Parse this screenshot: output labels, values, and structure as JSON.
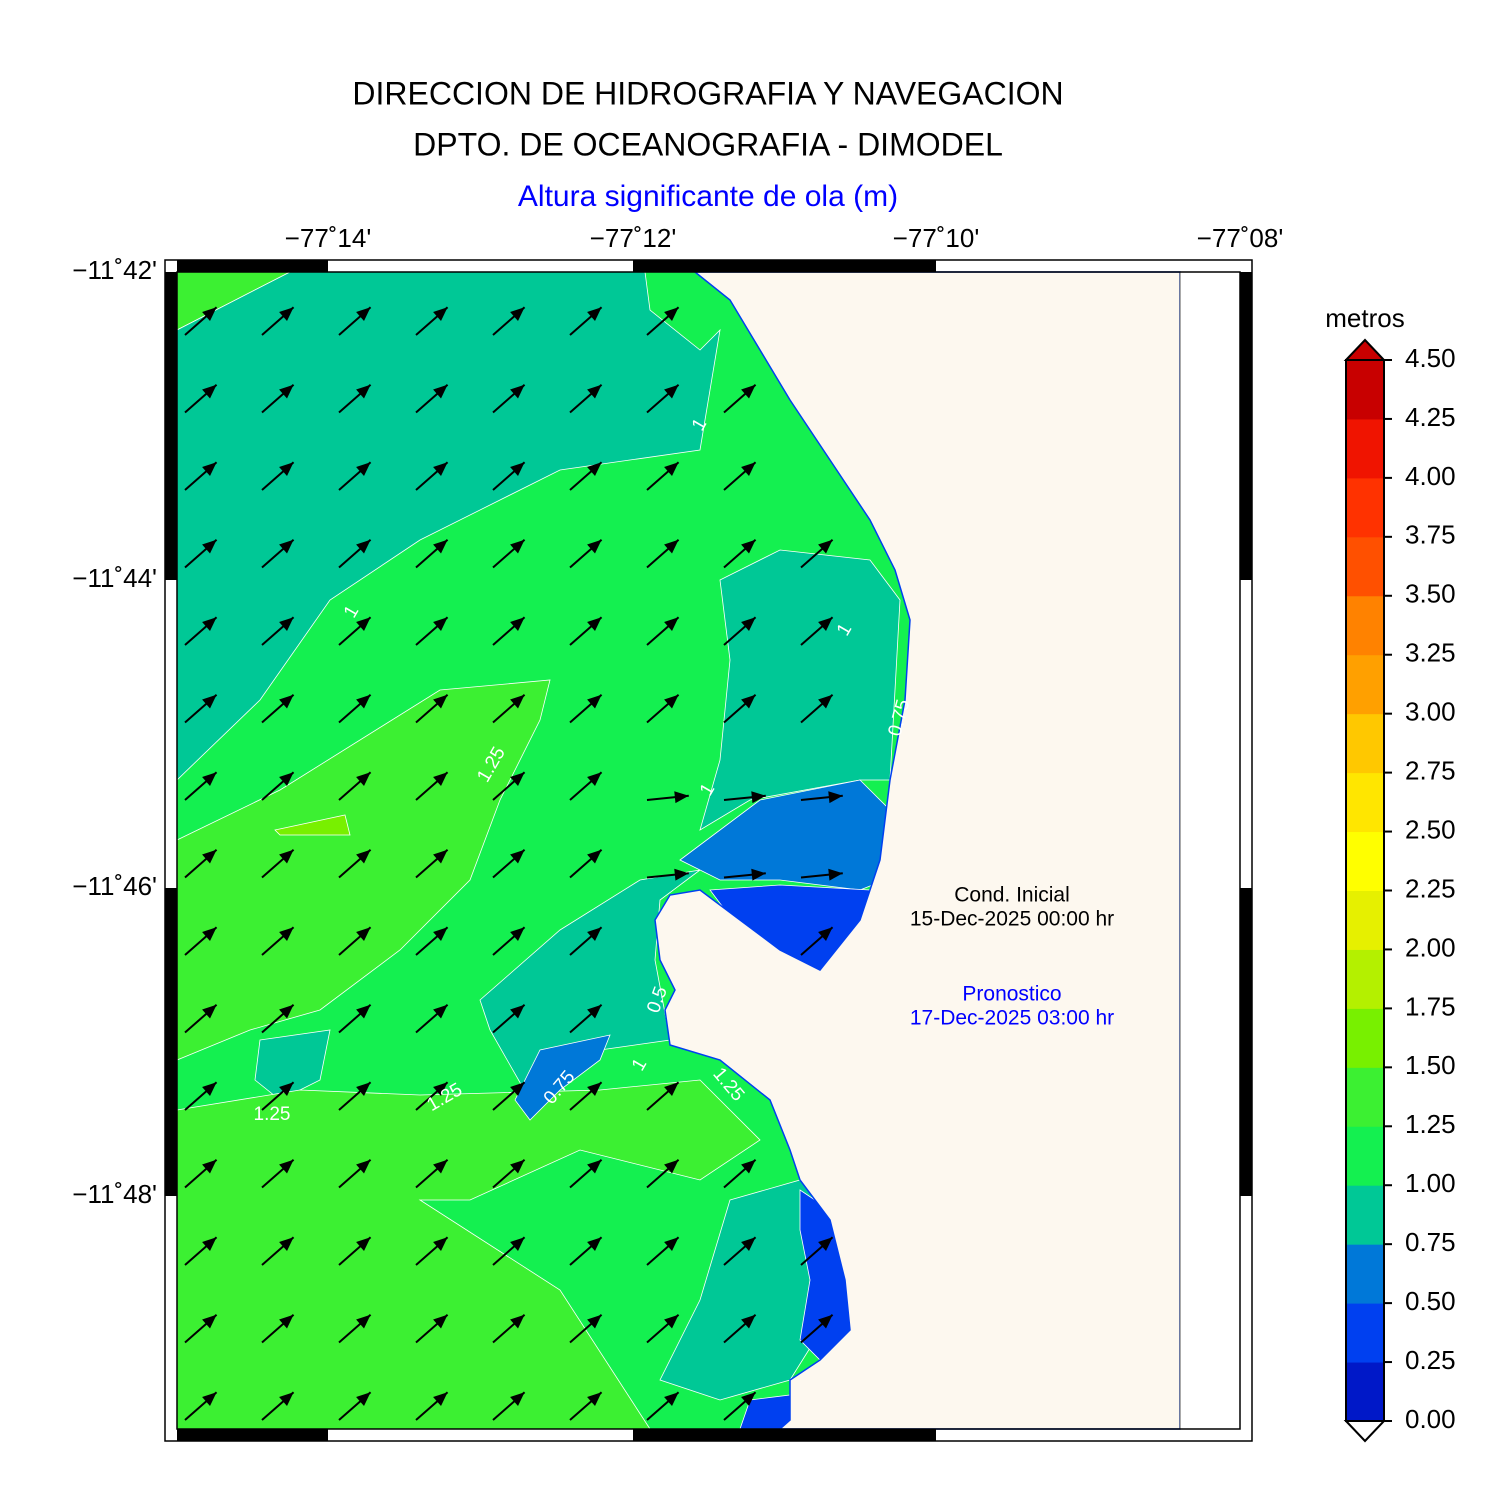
{
  "header": {
    "title": [
      "DIRECCION DE HIDROGRAFIA Y NAVEGACION",
      "DPTO. DE OCEANOGRAFIA - DIMODEL"
    ],
    "subtitle": "Altura significante de ola (m)"
  },
  "map": {
    "lon_labels": [
      "−77˚14'",
      "−77˚12'",
      "−77˚10'",
      "−77˚08'"
    ],
    "lat_labels": [
      "−11˚42'",
      "−11˚44'",
      "−11˚46'",
      "−11˚48'"
    ],
    "contour_labels": [
      "1",
      "1.25",
      "1",
      "0.75",
      "1",
      "1",
      "1.25",
      "1.25",
      "0.75",
      "1",
      "0.5",
      "1.25"
    ],
    "annotations": {
      "initial": {
        "label": "Cond. Inicial",
        "date": "15-Dec-2025 00:00 hr"
      },
      "forecast": {
        "label": "Pronostico",
        "date": "17-Dec-2025 03:00 hr"
      }
    }
  },
  "colorbar": {
    "title": "metros",
    "labels": [
      "0.00",
      "0.25",
      "0.50",
      "0.75",
      "1.00",
      "1.25",
      "1.50",
      "1.75",
      "2.00",
      "2.25",
      "2.50",
      "2.75",
      "3.00",
      "3.25",
      "3.50",
      "3.75",
      "4.00",
      "4.25",
      "4.50"
    ],
    "colors": [
      "#0018c8",
      "#0040f0",
      "#0078d8",
      "#00c896",
      "#14f050",
      "#3cf032",
      "#78f000",
      "#b4f000",
      "#e6f000",
      "#ffff00",
      "#ffe600",
      "#ffc800",
      "#ffa000",
      "#ff8200",
      "#ff5000",
      "#ff3200",
      "#f01400",
      "#c80000"
    ]
  }
}
